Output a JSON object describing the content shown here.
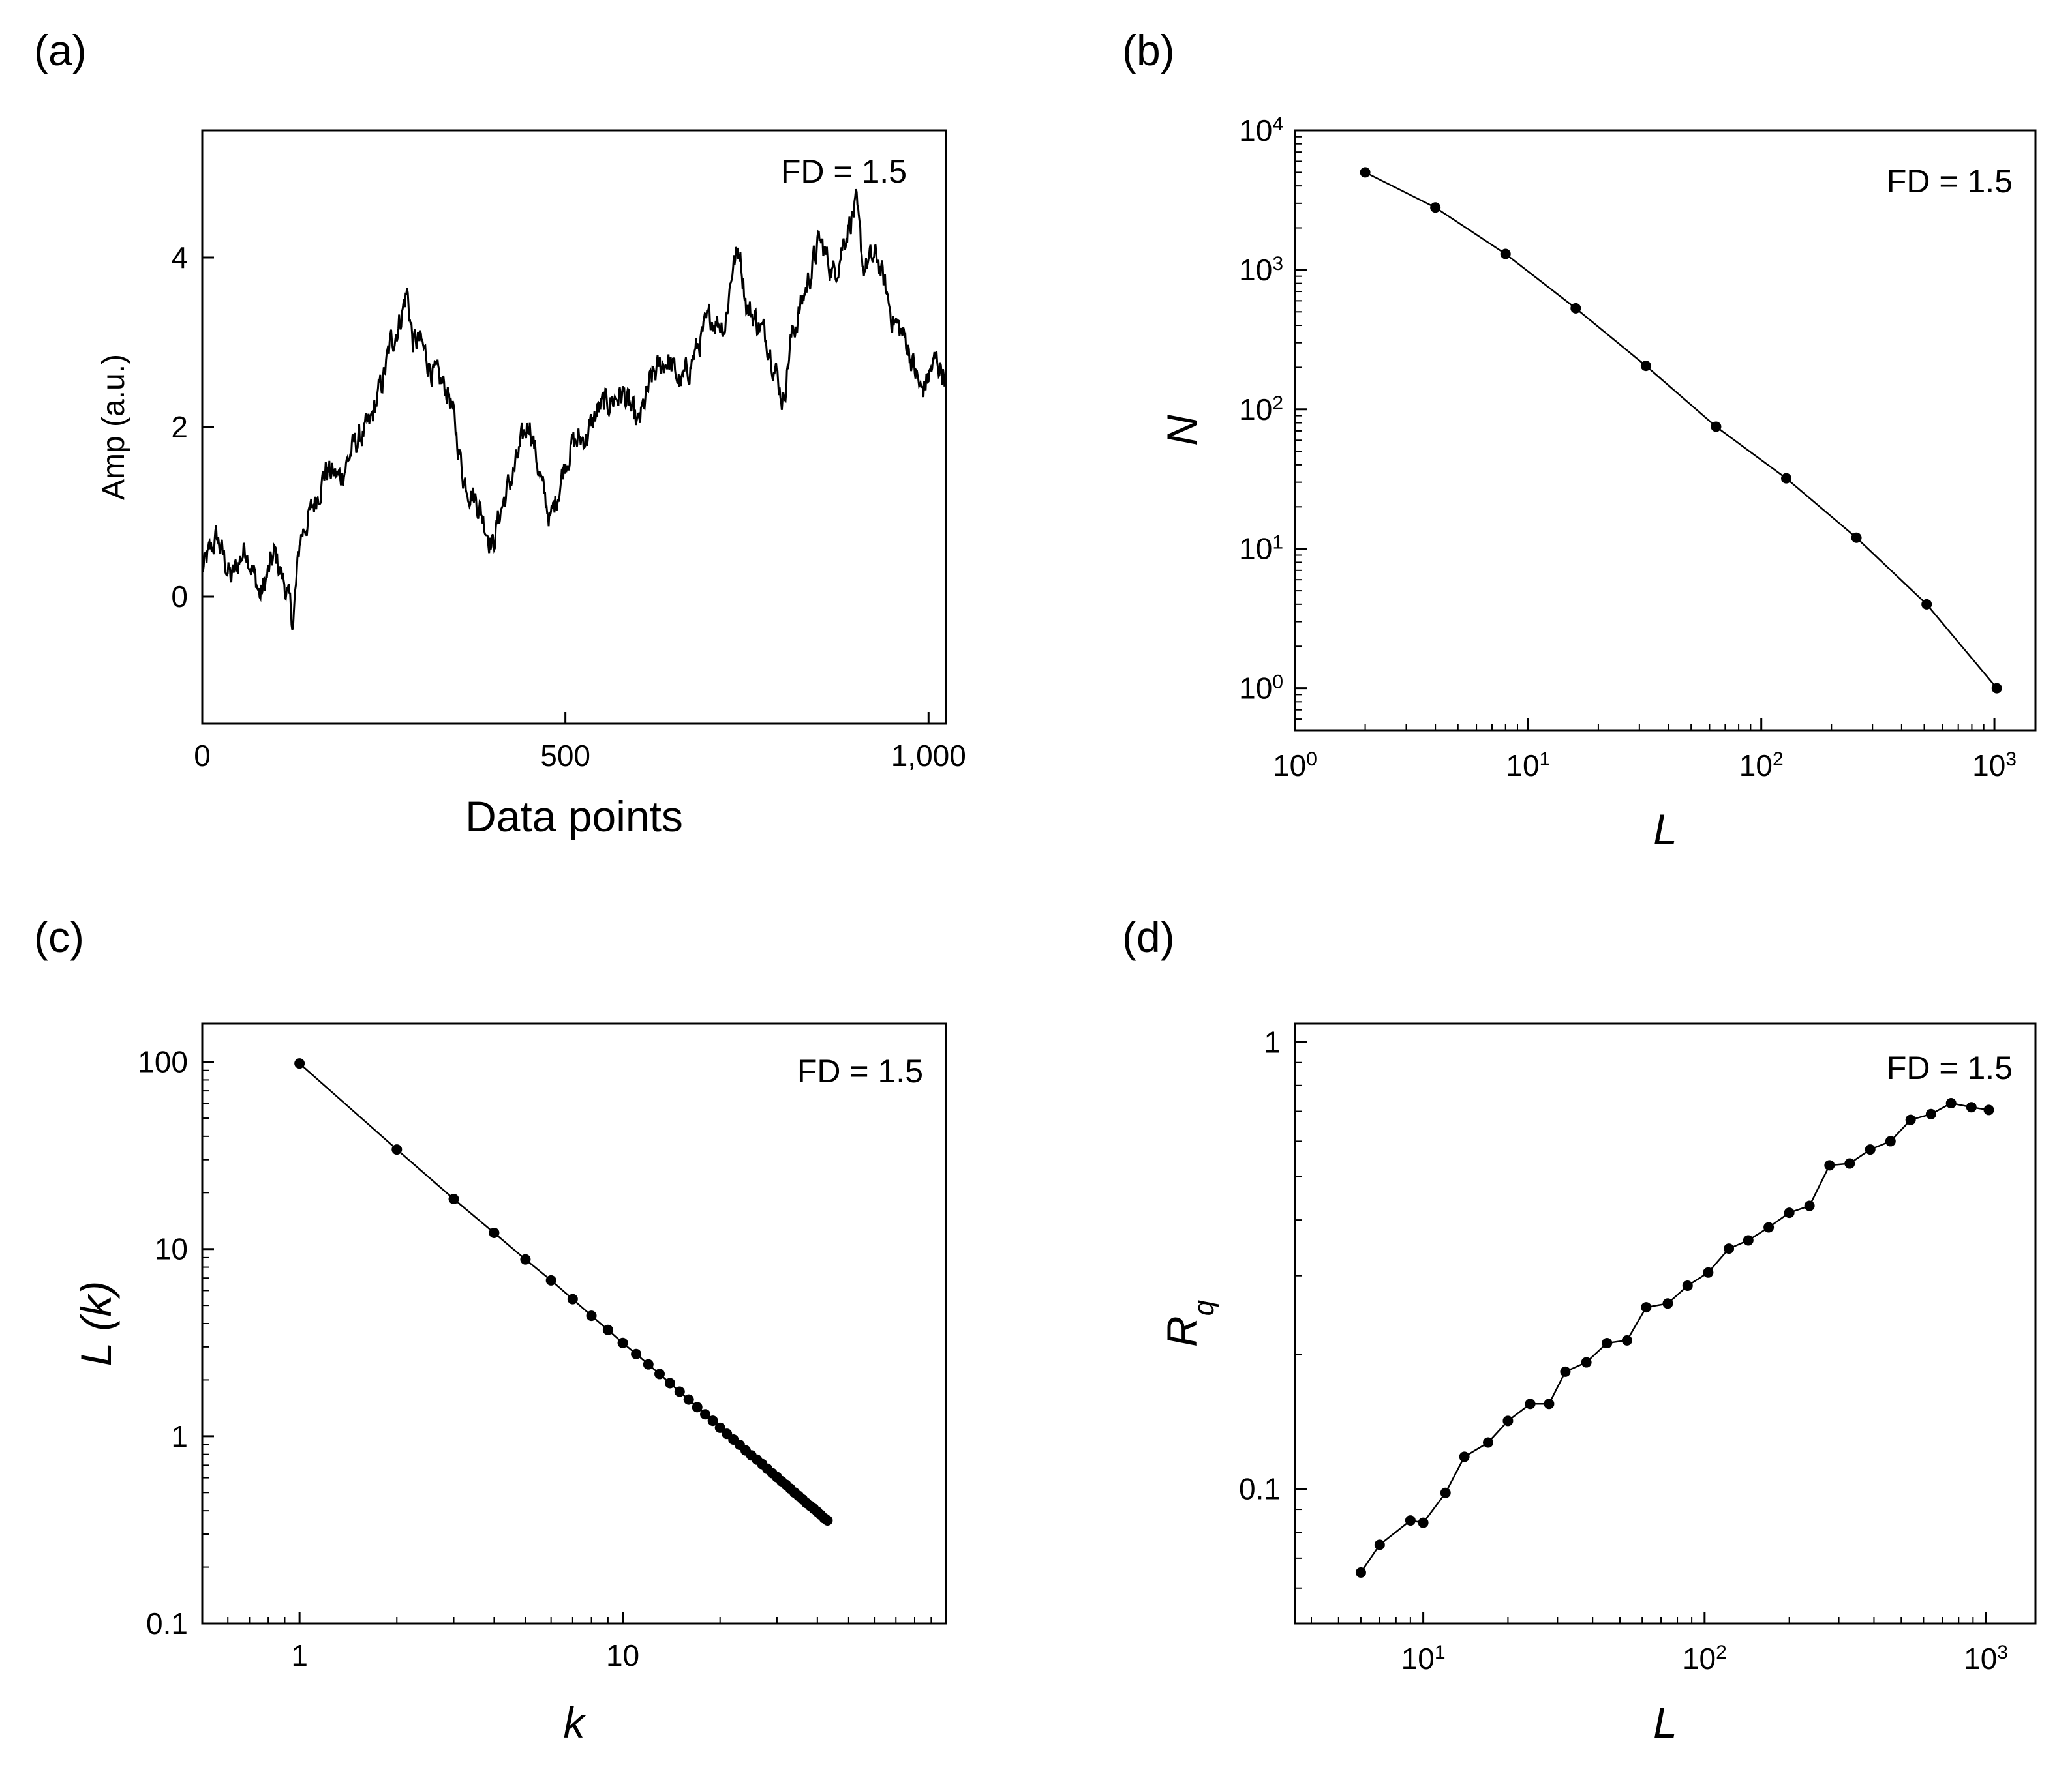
{
  "chart_data": [
    {
      "panel": "(a)",
      "type": "line",
      "xlabel": "Data points",
      "ylabel": "Amp (a.u.)",
      "annotation": "FD = 1.5",
      "xlim": [
        0,
        1024
      ],
      "ylim": [
        -1.5,
        5.5
      ],
      "xscale": "linear",
      "yscale": "linear",
      "xticks": [
        0,
        500,
        1000
      ],
      "xticklabels": [
        "0",
        "500",
        "1,000"
      ],
      "yticks": [
        0,
        2,
        4
      ],
      "yticklabels": [
        "0",
        "2",
        "4"
      ],
      "grid": false,
      "n_points": 1024,
      "x": [
        0,
        20,
        40,
        60,
        80,
        100,
        115,
        125,
        135,
        150,
        170,
        190,
        210,
        230,
        250,
        260,
        270,
        282,
        290,
        300,
        320,
        340,
        360,
        380,
        400,
        410,
        430,
        450,
        470,
        480,
        500,
        510,
        530,
        545,
        560,
        580,
        600,
        620,
        640,
        660,
        680,
        700,
        720,
        730,
        740,
        750,
        760,
        780,
        800,
        810,
        830,
        850,
        870,
        890,
        900,
        910,
        930,
        950,
        970,
        990,
        1010,
        1024
      ],
      "y": [
        0.3,
        0.7,
        0.2,
        0.6,
        0.0,
        0.5,
        0.1,
        -0.3,
        0.7,
        1.0,
        1.5,
        1.4,
        1.8,
        2.0,
        2.6,
        3.0,
        3.2,
        3.6,
        3.0,
        3.0,
        2.6,
        2.4,
        1.4,
        1.1,
        0.6,
        1.0,
        1.5,
        2.1,
        1.2,
        0.9,
        1.6,
        1.8,
        1.9,
        2.2,
        2.3,
        2.4,
        2.0,
        2.6,
        2.8,
        2.5,
        2.9,
        3.3,
        3.2,
        3.9,
        4.1,
        3.4,
        3.3,
        3.0,
        2.3,
        3.0,
        3.6,
        4.2,
        3.8,
        4.4,
        4.6,
        3.9,
        4.0,
        3.3,
        3.0,
        2.4,
        2.8,
        2.6
      ]
    },
    {
      "panel": "(b)",
      "type": "line",
      "xlabel": "L",
      "ylabel": "N",
      "annotation": "FD = 1.5",
      "xlim": [
        1,
        1500
      ],
      "ylim": [
        0.5,
        10000
      ],
      "xscale": "log",
      "yscale": "log",
      "xticks": [
        1,
        10,
        100,
        1000
      ],
      "xtick_exponents": [
        "0",
        "1",
        "2",
        "3"
      ],
      "yticks": [
        1,
        10,
        100,
        1000,
        10000
      ],
      "ytick_exponents": [
        "0",
        "1",
        "2",
        "3",
        "4"
      ],
      "grid": false,
      "x": [
        2,
        4,
        8,
        16,
        32,
        64,
        128,
        256,
        512,
        1024
      ],
      "y": [
        5000,
        2800,
        1300,
        530,
        205,
        75,
        32,
        12,
        4,
        1
      ]
    },
    {
      "panel": "(c)",
      "type": "line",
      "xlabel": "k",
      "ylabel": "L (k)",
      "annotation": "FD = 1.5",
      "xlim": [
        0.5,
        100
      ],
      "ylim": [
        0.1,
        160
      ],
      "xscale": "log",
      "yscale": "log",
      "xticks": [
        1,
        10
      ],
      "xticklabels": [
        "1",
        "10"
      ],
      "yticks": [
        0.1,
        1,
        10,
        100
      ],
      "yticklabels": [
        "0.1",
        "1",
        "10",
        "100"
      ],
      "grid": false,
      "x": [
        1,
        2,
        3,
        4,
        5,
        6,
        7,
        8,
        9,
        10,
        11,
        12,
        13,
        14,
        15,
        16,
        17,
        18,
        19,
        20,
        21,
        22,
        23,
        24,
        25,
        26,
        27,
        28,
        29,
        30,
        31,
        32,
        33,
        34,
        35,
        36,
        37,
        38,
        39,
        40,
        41,
        42,
        43
      ],
      "y": [
        98,
        34,
        18.5,
        12.2,
        8.8,
        6.8,
        5.4,
        4.4,
        3.7,
        3.15,
        2.75,
        2.42,
        2.15,
        1.92,
        1.73,
        1.57,
        1.43,
        1.31,
        1.21,
        1.11,
        1.03,
        0.96,
        0.9,
        0.84,
        0.79,
        0.75,
        0.71,
        0.67,
        0.635,
        0.605,
        0.575,
        0.55,
        0.525,
        0.5,
        0.48,
        0.46,
        0.44,
        0.425,
        0.41,
        0.395,
        0.38,
        0.365,
        0.355
      ]
    },
    {
      "panel": "(d)",
      "type": "line",
      "xlabel": "L",
      "ylabel": "Rq",
      "ylabel_main": "R",
      "ylabel_sub": "q",
      "annotation": "FD = 1.5",
      "xlim": [
        3.5,
        1500
      ],
      "ylim": [
        0.05,
        1.1
      ],
      "xscale": "log",
      "yscale": "log",
      "xticks": [
        10,
        100,
        1000
      ],
      "xtick_exponents": [
        "1",
        "2",
        "3"
      ],
      "yticks": [
        0.1,
        1
      ],
      "yticklabels": [
        "0.1",
        "1"
      ],
      "grid": false,
      "x": [
        6,
        7,
        9,
        10,
        12,
        14,
        17,
        20,
        24,
        28,
        32,
        38,
        45,
        53,
        62,
        74,
        87,
        103,
        122,
        143,
        169,
        200,
        236,
        278,
        328,
        388,
        458,
        540,
        638,
        752,
        888,
        1024
      ],
      "y": [
        0.065,
        0.075,
        0.085,
        0.084,
        0.098,
        0.118,
        0.127,
        0.142,
        0.155,
        0.155,
        0.183,
        0.192,
        0.212,
        0.215,
        0.255,
        0.26,
        0.285,
        0.305,
        0.345,
        0.36,
        0.385,
        0.415,
        0.43,
        0.53,
        0.535,
        0.575,
        0.6,
        0.67,
        0.69,
        0.73,
        0.715,
        0.705
      ]
    }
  ]
}
